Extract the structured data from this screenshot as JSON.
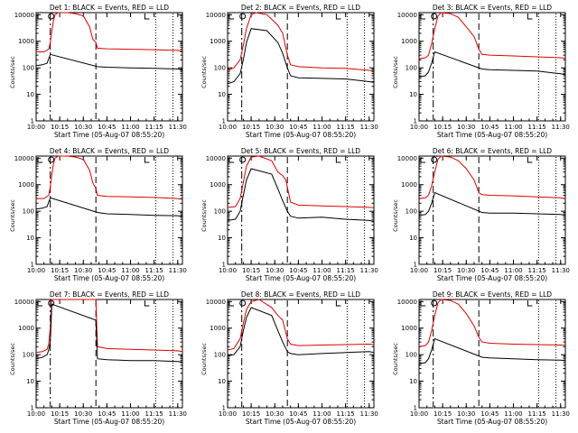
{
  "colors": {
    "events": "#000000",
    "lld": "#e00000",
    "axis": "#000000",
    "background": "#ffffff"
  },
  "chart_data": [
    {
      "type": "line",
      "title": "Det 1: BLACK = Events, RED = LLD",
      "xlabel": "Start Time (05-Aug-07 08:55:20)",
      "ylabel": "Counts/sec",
      "yscale": "log",
      "ylim": [
        1,
        12000
      ],
      "xlim": [
        "10:00",
        "11:33"
      ],
      "xticks": [
        "10:00",
        "10:15",
        "10:30",
        "10:45",
        "11:00",
        "11:15",
        "11:30"
      ],
      "yticks": [
        "1",
        "10",
        "100",
        "1000",
        "10000"
      ],
      "markers": {
        "dashdot": "10:09",
        "dashed": "10:38",
        "dotted": [
          "11:16",
          "11:27"
        ]
      },
      "series": [
        {
          "name": "LLD",
          "color": "red",
          "x": [
            "10:00",
            "10:05",
            "10:08",
            "10:09",
            "10:10",
            "10:11",
            "10:12",
            "10:14",
            "10:20",
            "10:25",
            "10:30",
            "10:34",
            "10:36",
            "10:38",
            "10:39",
            "10:45",
            "11:00",
            "11:15",
            "11:30",
            "11:33"
          ],
          "y": [
            400,
            400,
            500,
            900,
            2500,
            6000,
            10000,
            12000,
            12000,
            11000,
            9000,
            3500,
            1200,
            900,
            550,
            520,
            500,
            480,
            450,
            430
          ]
        },
        {
          "name": "Events",
          "color": "black",
          "x": [
            "10:00",
            "10:04",
            "10:07",
            "10:08",
            "10:09",
            "10:39",
            "10:45",
            "11:00",
            "11:15",
            "11:30",
            "11:33"
          ],
          "y": [
            120,
            130,
            150,
            220,
            320,
            110,
            105,
            100,
            95,
            90,
            85
          ]
        }
      ]
    },
    {
      "type": "line",
      "title": "Det 2: BLACK = Events, RED = LLD",
      "xlabel": "Start Time (05-Aug-07 08:55:20)",
      "ylabel": "Counts/sec",
      "yscale": "log",
      "ylim": [
        1,
        12000
      ],
      "xlim": [
        "10:00",
        "11:33"
      ],
      "xticks": [
        "10:00",
        "10:15",
        "10:30",
        "10:45",
        "11:00",
        "11:15",
        "11:30"
      ],
      "yticks": [
        "1",
        "10",
        "100",
        "1000",
        "10000"
      ],
      "markers": {
        "dashdot": "10:09",
        "dashed": "10:38",
        "dotted": [
          "11:16",
          "11:27"
        ]
      },
      "series": [
        {
          "name": "LLD",
          "color": "red",
          "x": [
            "10:00",
            "10:04",
            "10:08",
            "10:10",
            "10:12",
            "10:15",
            "10:18",
            "10:25",
            "10:32",
            "10:35",
            "10:38",
            "10:40",
            "10:45",
            "11:00",
            "11:15",
            "11:30",
            "11:33"
          ],
          "y": [
            80,
            100,
            200,
            700,
            3000,
            10000,
            12000,
            10000,
            4000,
            2000,
            300,
            130,
            110,
            100,
            95,
            80,
            75
          ]
        },
        {
          "name": "Events",
          "color": "black",
          "x": [
            "10:00",
            "10:04",
            "10:08",
            "10:10",
            "10:12",
            "10:15",
            "10:25",
            "10:32",
            "10:35",
            "10:38",
            "10:40",
            "10:45",
            "11:00",
            "11:15",
            "11:30",
            "11:33"
          ],
          "y": [
            25,
            30,
            60,
            200,
            900,
            3000,
            2500,
            900,
            350,
            100,
            50,
            42,
            40,
            38,
            30,
            28
          ]
        }
      ]
    },
    {
      "type": "line",
      "title": "Det 3: BLACK = Events, RED = LLD",
      "xlabel": "Start Time (05-Aug-07 08:55:20)",
      "ylabel": "Counts/sec",
      "yscale": "log",
      "ylim": [
        1,
        12000
      ],
      "xlim": [
        "10:00",
        "11:33"
      ],
      "xticks": [
        "10:00",
        "10:15",
        "10:30",
        "10:45",
        "11:00",
        "11:15",
        "11:30"
      ],
      "yticks": [
        "1",
        "10",
        "100",
        "1000",
        "10000"
      ],
      "markers": {
        "dashdot": "10:09",
        "dashed": "10:38",
        "dotted": [
          "11:16",
          "11:27"
        ]
      },
      "series": [
        {
          "name": "LLD",
          "color": "red",
          "x": [
            "10:00",
            "10:04",
            "10:06",
            "10:08",
            "10:10",
            "10:12",
            "10:14",
            "10:20",
            "10:25",
            "10:30",
            "10:35",
            "10:38",
            "10:40",
            "10:45",
            "11:00",
            "11:15",
            "11:30",
            "11:33"
          ],
          "y": [
            220,
            240,
            300,
            800,
            3000,
            9000,
            12000,
            11000,
            8000,
            3500,
            1500,
            500,
            320,
            300,
            280,
            260,
            240,
            230
          ]
        },
        {
          "name": "Events",
          "color": "black",
          "x": [
            "10:00",
            "10:04",
            "10:06",
            "10:08",
            "10:10",
            "10:40",
            "10:45",
            "11:00",
            "11:15",
            "11:30",
            "11:33"
          ],
          "y": [
            45,
            50,
            70,
            150,
            400,
            90,
            85,
            80,
            75,
            60,
            55
          ]
        }
      ]
    },
    {
      "type": "line",
      "title": "Det 4: BLACK = Events, RED = LLD",
      "xlabel": "Start Time (05-Aug-07 08:55:20)",
      "ylabel": "Counts/sec",
      "yscale": "log",
      "ylim": [
        1,
        12000
      ],
      "xlim": [
        "10:00",
        "11:33"
      ],
      "xticks": [
        "10:00",
        "10:15",
        "10:30",
        "10:45",
        "11:00",
        "11:15",
        "11:30"
      ],
      "yticks": [
        "1",
        "10",
        "100",
        "1000",
        "10000"
      ],
      "markers": {
        "dashdot": "10:09",
        "dashed": "10:38",
        "dotted": [
          "11:16",
          "11:27"
        ]
      },
      "series": [
        {
          "name": "LLD",
          "color": "red",
          "x": [
            "10:00",
            "10:05",
            "10:08",
            "10:09",
            "10:10",
            "10:11",
            "10:12",
            "10:14",
            "10:20",
            "10:25",
            "10:30",
            "10:34",
            "10:36",
            "10:38",
            "10:39",
            "10:45",
            "11:00",
            "11:15",
            "11:30",
            "11:33"
          ],
          "y": [
            300,
            300,
            400,
            800,
            2500,
            6000,
            10000,
            12000,
            12000,
            11000,
            9000,
            3500,
            1200,
            700,
            400,
            360,
            350,
            330,
            300,
            280
          ]
        },
        {
          "name": "Events",
          "color": "black",
          "x": [
            "10:00",
            "10:04",
            "10:07",
            "10:08",
            "10:09",
            "10:39",
            "10:45",
            "11:00",
            "11:15",
            "11:30",
            "11:33"
          ],
          "y": [
            120,
            130,
            150,
            220,
            320,
            90,
            80,
            75,
            70,
            68,
            62
          ]
        }
      ]
    },
    {
      "type": "line",
      "title": "Det 5: BLACK = Events, RED = LLD",
      "xlabel": "Start Time (05-Aug-07 08:55:20)",
      "ylabel": "Counts/sec",
      "yscale": "log",
      "ylim": [
        1,
        12000
      ],
      "xlim": [
        "10:00",
        "11:33"
      ],
      "xticks": [
        "10:00",
        "10:15",
        "10:30",
        "10:45",
        "11:00",
        "11:15",
        "11:30"
      ],
      "yticks": [
        "1",
        "10",
        "100",
        "1000",
        "10000"
      ],
      "markers": {
        "dashdot": "10:09",
        "dashed": "10:38",
        "dotted": [
          "11:16",
          "11:27"
        ]
      },
      "series": [
        {
          "name": "LLD",
          "color": "red",
          "x": [
            "10:00",
            "10:05",
            "10:08",
            "10:10",
            "10:12",
            "10:15",
            "10:20",
            "10:28",
            "10:32",
            "10:35",
            "10:37",
            "10:40",
            "10:45",
            "11:00",
            "11:15",
            "11:30",
            "11:33"
          ],
          "y": [
            140,
            150,
            300,
            1200,
            5000,
            11000,
            12000,
            8000,
            3000,
            2200,
            1500,
            220,
            170,
            160,
            150,
            140,
            135
          ]
        },
        {
          "name": "Events",
          "color": "black",
          "x": [
            "10:00",
            "10:05",
            "10:08",
            "10:10",
            "10:12",
            "10:15",
            "10:28",
            "10:32",
            "10:35",
            "10:38",
            "10:40",
            "10:45",
            "11:00",
            "11:15",
            "11:30",
            "11:33"
          ],
          "y": [
            45,
            50,
            100,
            400,
            1500,
            4000,
            2500,
            700,
            250,
            100,
            65,
            55,
            60,
            50,
            45,
            42
          ]
        }
      ]
    },
    {
      "type": "line",
      "title": "Det 6: BLACK = Events, RED = LLD",
      "xlabel": "Start Time (05-Aug-07 08:55:20)",
      "ylabel": "Counts/sec",
      "yscale": "log",
      "ylim": [
        1,
        12000
      ],
      "xlim": [
        "10:00",
        "11:33"
      ],
      "xticks": [
        "10:00",
        "10:15",
        "10:30",
        "10:45",
        "11:00",
        "11:15",
        "11:30"
      ],
      "yticks": [
        "1",
        "10",
        "100",
        "1000",
        "10000"
      ],
      "markers": {
        "dashdot": "10:09",
        "dashed": "10:38",
        "dotted": [
          "11:16",
          "11:27"
        ]
      },
      "series": [
        {
          "name": "LLD",
          "color": "red",
          "x": [
            "10:00",
            "10:04",
            "10:06",
            "10:08",
            "10:10",
            "10:12",
            "10:14",
            "10:20",
            "10:25",
            "10:30",
            "10:35",
            "10:38",
            "10:40",
            "10:45",
            "11:00",
            "11:15",
            "11:30",
            "11:33"
          ],
          "y": [
            300,
            320,
            400,
            900,
            3000,
            9000,
            12000,
            11000,
            8000,
            4000,
            1500,
            500,
            420,
            400,
            380,
            350,
            320,
            300
          ]
        },
        {
          "name": "Events",
          "color": "black",
          "x": [
            "10:00",
            "10:04",
            "10:06",
            "10:08",
            "10:10",
            "10:40",
            "10:45",
            "11:00",
            "11:15",
            "11:30",
            "11:33"
          ],
          "y": [
            70,
            75,
            100,
            200,
            500,
            90,
            85,
            85,
            80,
            75,
            70
          ]
        }
      ]
    },
    {
      "type": "line",
      "title": "Det 7: BLACK = Events, RED = LLD",
      "xlabel": "Start Time (05-Aug-07 08:55:20)",
      "ylabel": "Counts/sec",
      "yscale": "log",
      "ylim": [
        1,
        12000
      ],
      "xlim": [
        "10:00",
        "11:33"
      ],
      "xticks": [
        "10:00",
        "10:15",
        "10:30",
        "10:45",
        "11:00",
        "11:15",
        "11:30"
      ],
      "yticks": [
        "1",
        "10",
        "100",
        "1000",
        "10000"
      ],
      "markers": {
        "dashdot": "10:09",
        "dashed": "10:38",
        "dotted": [
          "11:16",
          "11:27"
        ]
      },
      "series": [
        {
          "name": "LLD",
          "color": "red",
          "x": [
            "10:00",
            "10:04",
            "10:07",
            "10:08",
            "10:09",
            "10:10",
            "10:38",
            "10:39",
            "10:45",
            "11:00",
            "11:15",
            "11:30",
            "11:33"
          ],
          "y": [
            120,
            130,
            160,
            250,
            1000,
            12000,
            12000,
            200,
            170,
            160,
            150,
            140,
            130
          ]
        },
        {
          "name": "Events",
          "color": "black",
          "x": [
            "10:00",
            "10:04",
            "10:07",
            "10:08",
            "10:09",
            "10:10",
            "10:38",
            "10:39",
            "10:45",
            "11:00",
            "11:15",
            "11:30",
            "11:33"
          ],
          "y": [
            70,
            80,
            100,
            150,
            300,
            8000,
            2000,
            70,
            65,
            60,
            60,
            55,
            52
          ]
        }
      ]
    },
    {
      "type": "line",
      "title": "Det 8: BLACK = Events, RED = LLD",
      "xlabel": "Start Time (05-Aug-07 08:55:20)",
      "ylabel": "Counts/sec",
      "yscale": "log",
      "ylim": [
        1,
        12000
      ],
      "xlim": [
        "10:00",
        "11:33"
      ],
      "xticks": [
        "10:00",
        "10:15",
        "10:30",
        "10:45",
        "11:00",
        "11:15",
        "11:30"
      ],
      "yticks": [
        "1",
        "10",
        "100",
        "1000",
        "10000"
      ],
      "markers": {
        "dashdot": "10:09",
        "dashed": "10:38",
        "dotted": [
          "11:16",
          "11:27"
        ]
      },
      "series": [
        {
          "name": "LLD",
          "color": "red",
          "x": [
            "10:00",
            "10:04",
            "10:08",
            "10:10",
            "10:12",
            "10:15",
            "10:20",
            "10:28",
            "10:32",
            "10:35",
            "10:38",
            "10:40",
            "10:45",
            "11:00",
            "11:15",
            "11:30",
            "11:33"
          ],
          "y": [
            150,
            170,
            400,
            1500,
            5000,
            10000,
            12000,
            6000,
            3000,
            2000,
            400,
            250,
            220,
            230,
            240,
            250,
            240
          ]
        },
        {
          "name": "Events",
          "color": "black",
          "x": [
            "10:00",
            "10:04",
            "10:08",
            "10:10",
            "10:12",
            "10:15",
            "10:28",
            "10:32",
            "10:35",
            "10:38",
            "10:40",
            "10:45",
            "11:00",
            "11:15",
            "11:30",
            "11:33"
          ],
          "y": [
            90,
            100,
            200,
            800,
            2500,
            6000,
            3000,
            800,
            300,
            130,
            110,
            100,
            110,
            120,
            130,
            120
          ]
        }
      ]
    },
    {
      "type": "line",
      "title": "Det 9: BLACK = Events, RED = LLD",
      "xlabel": "Start Time (05-Aug-07 08:55:20)",
      "ylabel": "Counts/sec",
      "yscale": "log",
      "ylim": [
        1,
        12000
      ],
      "xlim": [
        "10:00",
        "11:33"
      ],
      "xticks": [
        "10:00",
        "10:15",
        "10:30",
        "10:45",
        "11:00",
        "11:15",
        "11:30"
      ],
      "yticks": [
        "1",
        "10",
        "100",
        "1000",
        "10000"
      ],
      "markers": {
        "dashdot": "10:09",
        "dashed": "10:38",
        "dotted": [
          "11:16",
          "11:27"
        ]
      },
      "series": [
        {
          "name": "LLD",
          "color": "red",
          "x": [
            "10:00",
            "10:04",
            "10:06",
            "10:08",
            "10:10",
            "10:12",
            "10:14",
            "10:20",
            "10:25",
            "10:30",
            "10:35",
            "10:38",
            "10:40",
            "10:45",
            "11:00",
            "11:15",
            "11:30",
            "11:33"
          ],
          "y": [
            200,
            220,
            300,
            800,
            3000,
            9000,
            12000,
            11000,
            8000,
            3500,
            1200,
            450,
            300,
            270,
            250,
            240,
            230,
            225
          ]
        },
        {
          "name": "Events",
          "color": "black",
          "x": [
            "10:00",
            "10:04",
            "10:06",
            "10:08",
            "10:10",
            "10:40",
            "10:45",
            "11:00",
            "11:15",
            "11:30",
            "11:33"
          ],
          "y": [
            45,
            50,
            70,
            150,
            400,
            80,
            75,
            70,
            65,
            62,
            60
          ]
        }
      ]
    }
  ]
}
